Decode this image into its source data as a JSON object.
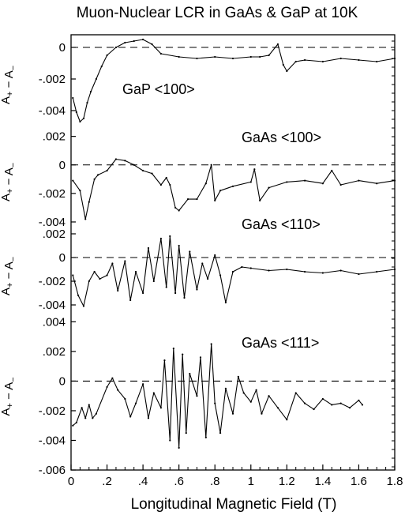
{
  "chart_data": {
    "type": "line",
    "title": "Muon-Nuclear LCR in GaAs & GaP at 10K",
    "xlabel": "Longitudinal Magnetic Field (T)",
    "x_ticks": [
      "0",
      ".2",
      ".4",
      ".6",
      ".8",
      "1",
      "1.2",
      "1.4",
      "1.6",
      "1.8"
    ],
    "x_tick_values": [
      0,
      0.2,
      0.4,
      0.6,
      0.8,
      1.0,
      1.2,
      1.4,
      1.6,
      1.8
    ],
    "xlim": [
      0,
      1.8
    ],
    "grid": false,
    "reference_line": {
      "y": 0,
      "style": "dashed"
    },
    "panels": [
      {
        "annotation": "GaP <100>",
        "ylabel_main": "A",
        "ylabel_sub_plus": "+",
        "ylabel_sub_minus": "−",
        "ylabel_sep": "−",
        "ylim": [
          -0.005,
          0.0008
        ],
        "yticks": [
          "0",
          "-.002",
          "-.004"
        ],
        "ytick_values": [
          0,
          -0.002,
          -0.004
        ],
        "series": [
          {
            "x": [
              0.01,
              0.03,
              0.05,
              0.07,
              0.09,
              0.11,
              0.14,
              0.17,
              0.2,
              0.25,
              0.3,
              0.35,
              0.4,
              0.45,
              0.5,
              0.6,
              0.7,
              0.8,
              0.9,
              1.0,
              1.05,
              1.1,
              1.15,
              1.18,
              1.2,
              1.25,
              1.3,
              1.4,
              1.5,
              1.6,
              1.7,
              1.8
            ],
            "y": [
              -0.0032,
              -0.0041,
              -0.0047,
              -0.0045,
              -0.0035,
              -0.0028,
              -0.002,
              -0.0012,
              -0.0005,
              0.0,
              0.0003,
              0.0004,
              0.0005,
              0.0002,
              -0.0004,
              -0.0006,
              -0.0007,
              -0.0006,
              -0.0007,
              -0.0006,
              -0.0006,
              -0.0005,
              0.0002,
              -0.0011,
              -0.0015,
              -0.0009,
              -0.0008,
              -0.0009,
              -0.0007,
              -0.0008,
              -0.0009,
              -0.0007
            ]
          }
        ]
      },
      {
        "annotation": "GaAs <100>",
        "ylabel_main": "A",
        "ylabel_sub_plus": "+",
        "ylabel_sub_minus": "−",
        "ylabel_sep": "−",
        "ylim": [
          -0.0045,
          0.0027
        ],
        "yticks": [
          ".002",
          "0",
          "-.002",
          "-.004"
        ],
        "ytick_values": [
          0.002,
          0,
          -0.002,
          -0.004
        ],
        "series": [
          {
            "x": [
              0.01,
              0.05,
              0.08,
              0.1,
              0.13,
              0.15,
              0.2,
              0.25,
              0.3,
              0.35,
              0.4,
              0.45,
              0.5,
              0.53,
              0.55,
              0.58,
              0.6,
              0.65,
              0.7,
              0.75,
              0.78,
              0.8,
              0.83,
              0.9,
              1.0,
              1.02,
              1.05,
              1.1,
              1.2,
              1.3,
              1.4,
              1.45,
              1.5,
              1.6,
              1.7,
              1.8
            ],
            "y": [
              -0.0011,
              -0.0018,
              -0.0038,
              -0.0026,
              -0.001,
              -0.0007,
              -0.0004,
              0.0004,
              0.0003,
              0.0,
              -0.0004,
              -0.0006,
              -0.0014,
              -0.0009,
              -0.0014,
              -0.003,
              -0.0032,
              -0.0024,
              -0.0024,
              -0.0013,
              0.0,
              -0.0025,
              -0.0018,
              -0.0015,
              -0.0012,
              -0.0003,
              -0.0025,
              -0.0016,
              -0.0012,
              -0.0011,
              -0.0013,
              -0.0004,
              -0.0014,
              -0.0011,
              -0.0013,
              -0.0011
            ]
          }
        ]
      },
      {
        "annotation": "GaAs <110>",
        "ylabel_main": "A",
        "ylabel_sub_plus": "+",
        "ylabel_sub_minus": "−",
        "ylabel_sep": "−",
        "ylim": [
          -0.0048,
          0.0024
        ],
        "yticks": [
          ".002",
          "0",
          "-.002",
          "-.004"
        ],
        "ytick_values": [
          0.002,
          0,
          -0.002,
          -0.004
        ],
        "series": [
          {
            "x": [
              0.01,
              0.04,
              0.07,
              0.1,
              0.13,
              0.16,
              0.2,
              0.23,
              0.26,
              0.3,
              0.33,
              0.36,
              0.4,
              0.43,
              0.46,
              0.5,
              0.53,
              0.55,
              0.58,
              0.6,
              0.63,
              0.66,
              0.7,
              0.73,
              0.76,
              0.8,
              0.83,
              0.86,
              0.9,
              0.95,
              1.0,
              1.1,
              1.2,
              1.3,
              1.4,
              1.5,
              1.6,
              1.7,
              1.8
            ],
            "y": [
              -0.0015,
              -0.0032,
              -0.0041,
              -0.002,
              -0.0012,
              -0.0018,
              -0.0015,
              -0.0005,
              -0.0028,
              -0.0003,
              -0.0036,
              -0.0012,
              -0.003,
              0.0008,
              -0.002,
              0.0016,
              -0.0025,
              0.0018,
              -0.003,
              0.001,
              -0.0034,
              0.0005,
              -0.0027,
              -0.0005,
              -0.0018,
              0.0002,
              -0.0015,
              -0.0038,
              -0.0012,
              -0.0008,
              -0.0009,
              -0.0011,
              -0.001,
              -0.0012,
              -0.0013,
              -0.0011,
              -0.0014,
              -0.0012,
              -0.001
            ]
          }
        ]
      },
      {
        "annotation": "GaAs <111>",
        "ylabel_main": "A",
        "ylabel_sub_plus": "+",
        "ylabel_sub_minus": "−",
        "ylabel_sep": "−",
        "ylim": [
          -0.006,
          0.0045
        ],
        "yticks": [
          ".004",
          ".002",
          "0",
          "-.002",
          "-.004",
          "-.006"
        ],
        "ytick_values": [
          0.004,
          0.002,
          0,
          -0.002,
          -0.004,
          -0.006
        ],
        "series": [
          {
            "x": [
              0.01,
              0.03,
              0.06,
              0.08,
              0.1,
              0.12,
              0.14,
              0.2,
              0.23,
              0.26,
              0.3,
              0.33,
              0.36,
              0.4,
              0.43,
              0.46,
              0.5,
              0.52,
              0.55,
              0.57,
              0.6,
              0.62,
              0.64,
              0.66,
              0.7,
              0.72,
              0.75,
              0.78,
              0.8,
              0.83,
              0.86,
              0.9,
              0.93,
              0.96,
              1.0,
              1.03,
              1.06,
              1.1,
              1.15,
              1.2,
              1.25,
              1.3,
              1.35,
              1.4,
              1.45,
              1.5,
              1.55,
              1.6,
              1.62
            ],
            "y": [
              -0.003,
              -0.0028,
              -0.0018,
              -0.0025,
              -0.0016,
              -0.0025,
              -0.0022,
              -0.0004,
              0.0002,
              -0.0006,
              -0.0012,
              -0.0024,
              -0.0015,
              -0.0002,
              -0.0025,
              -0.0008,
              -0.0018,
              0.0014,
              -0.004,
              0.0022,
              -0.0045,
              0.0018,
              -0.0035,
              0.0005,
              -0.001,
              0.0016,
              -0.0038,
              0.0025,
              -0.0015,
              -0.0035,
              -0.0005,
              -0.0022,
              0.0003,
              -0.0008,
              -0.0014,
              -0.0006,
              -0.0022,
              -0.001,
              -0.0018,
              -0.0026,
              -0.0008,
              -0.0015,
              -0.0019,
              -0.0012,
              -0.0016,
              -0.0015,
              -0.0018,
              -0.0013,
              -0.0016
            ]
          }
        ]
      }
    ]
  }
}
